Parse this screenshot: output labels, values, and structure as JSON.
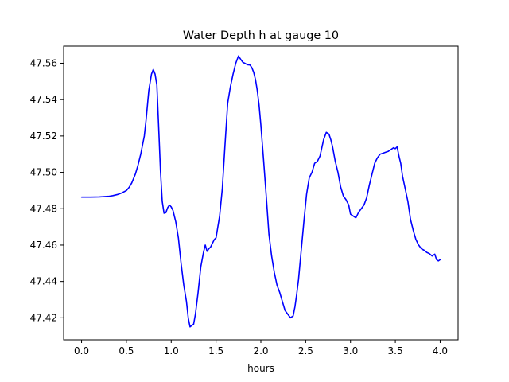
{
  "chart_data": {
    "type": "line",
    "title": "Water Depth h at gauge 10",
    "xlabel": "hours",
    "ylabel": "",
    "xlim": [
      -0.2,
      4.2
    ],
    "ylim": [
      47.4079,
      47.5694
    ],
    "x_ticks": [
      0.0,
      0.5,
      1.0,
      1.5,
      2.0,
      2.5,
      3.0,
      3.5,
      4.0
    ],
    "x_tick_labels": [
      "0.0",
      "0.5",
      "1.0",
      "1.5",
      "2.0",
      "2.5",
      "3.0",
      "3.5",
      "4.0"
    ],
    "y_ticks": [
      47.42,
      47.44,
      47.46,
      47.48,
      47.5,
      47.52,
      47.54,
      47.56
    ],
    "y_tick_labels": [
      "47.42",
      "47.44",
      "47.46",
      "47.48",
      "47.50",
      "47.52",
      "47.54",
      "47.56"
    ],
    "grid": false,
    "series_color": "#0000ff",
    "series": [
      {
        "x": [
          0.0,
          0.1,
          0.2,
          0.3,
          0.35,
          0.4,
          0.45,
          0.5,
          0.53,
          0.56,
          0.6,
          0.63,
          0.66,
          0.7,
          0.72,
          0.75,
          0.78,
          0.8,
          0.82,
          0.84,
          0.86,
          0.88,
          0.9,
          0.92,
          0.94,
          0.96,
          0.98,
          1.0,
          1.02,
          1.05,
          1.08,
          1.11,
          1.14,
          1.17,
          1.19,
          1.21,
          1.23,
          1.25,
          1.27,
          1.3,
          1.33,
          1.36,
          1.38,
          1.4,
          1.42,
          1.44,
          1.46,
          1.48,
          1.5,
          1.52,
          1.54,
          1.57,
          1.6,
          1.63,
          1.66,
          1.69,
          1.72,
          1.75,
          1.78,
          1.8,
          1.82,
          1.85,
          1.88,
          1.9,
          1.92,
          1.94,
          1.96,
          1.98,
          2.0,
          2.03,
          2.06,
          2.09,
          2.12,
          2.15,
          2.18,
          2.21,
          2.24,
          2.27,
          2.3,
          2.33,
          2.36,
          2.38,
          2.4,
          2.42,
          2.45,
          2.48,
          2.51,
          2.54,
          2.57,
          2.6,
          2.63,
          2.66,
          2.7,
          2.73,
          2.76,
          2.78,
          2.8,
          2.83,
          2.86,
          2.89,
          2.92,
          2.95,
          2.98,
          3.0,
          3.03,
          3.06,
          3.09,
          3.12,
          3.15,
          3.18,
          3.21,
          3.24,
          3.27,
          3.3,
          3.33,
          3.36,
          3.39,
          3.42,
          3.45,
          3.48,
          3.5,
          3.52,
          3.54,
          3.56,
          3.58,
          3.61,
          3.64,
          3.67,
          3.7,
          3.73,
          3.76,
          3.79,
          3.82,
          3.85,
          3.88,
          3.91,
          3.94,
          3.96,
          3.98,
          4.0
        ],
        "values": [
          47.4864,
          47.4864,
          47.4865,
          47.4868,
          47.4872,
          47.4878,
          47.4887,
          47.49,
          47.4917,
          47.4942,
          47.499,
          47.504,
          47.51,
          47.52,
          47.529,
          47.545,
          47.554,
          47.5566,
          47.554,
          47.548,
          47.525,
          47.501,
          47.484,
          47.4775,
          47.4778,
          47.4805,
          47.482,
          47.481,
          47.479,
          47.473,
          47.464,
          47.45,
          47.438,
          47.429,
          47.42,
          47.415,
          47.4158,
          47.4165,
          47.422,
          47.434,
          47.448,
          47.456,
          47.46,
          47.4566,
          47.458,
          47.459,
          47.461,
          47.463,
          47.464,
          47.47,
          47.476,
          47.491,
          47.515,
          47.538,
          47.547,
          47.554,
          47.56,
          47.564,
          47.5618,
          47.5605,
          47.56,
          47.5592,
          47.559,
          47.5575,
          47.555,
          47.551,
          47.545,
          47.537,
          47.526,
          47.507,
          47.487,
          47.466,
          47.454,
          47.445,
          47.438,
          47.434,
          47.429,
          47.424,
          47.422,
          47.42,
          47.421,
          47.426,
          47.433,
          47.441,
          47.457,
          47.473,
          47.488,
          47.497,
          47.5,
          47.505,
          47.506,
          47.509,
          47.518,
          47.522,
          47.521,
          47.518,
          47.514,
          47.506,
          47.5,
          47.492,
          47.487,
          47.485,
          47.482,
          47.477,
          47.476,
          47.475,
          47.478,
          47.48,
          47.482,
          47.486,
          47.493,
          47.499,
          47.505,
          47.508,
          47.51,
          47.5105,
          47.511,
          47.5115,
          47.5125,
          47.5135,
          47.513,
          47.514,
          47.509,
          47.505,
          47.498,
          47.491,
          47.484,
          47.474,
          47.468,
          47.463,
          47.46,
          47.458,
          47.4572,
          47.456,
          47.4553,
          47.454,
          47.455,
          47.452,
          47.4513,
          47.452
        ]
      }
    ]
  }
}
